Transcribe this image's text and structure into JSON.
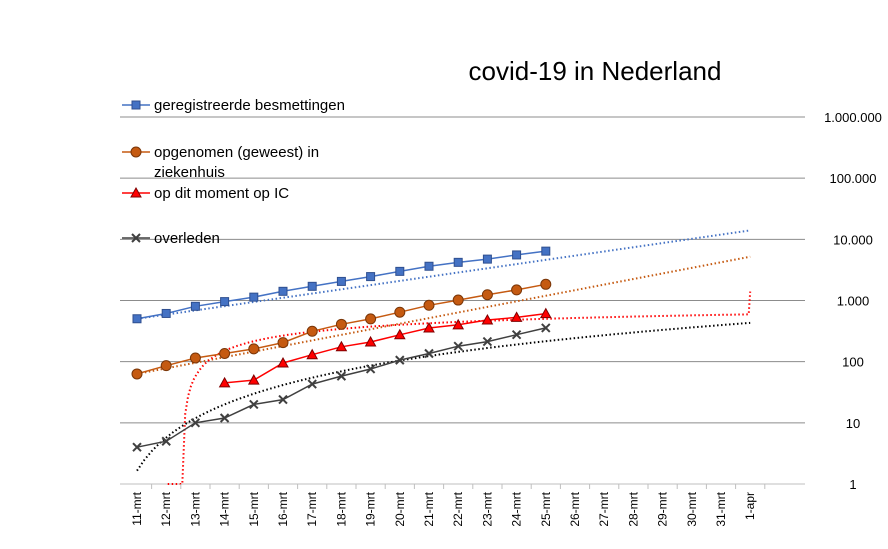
{
  "chart_data": {
    "type": "line",
    "title": "covid-19 in Nederland",
    "xlabel": "",
    "ylabel": "",
    "yscale": "log",
    "ylim": [
      1,
      1000000
    ],
    "grid": true,
    "legend_position": "top-left",
    "y_tick_labels": [
      "1",
      "10",
      "100",
      "1.000",
      "10.000",
      "100.000",
      "1.000.000"
    ],
    "categories": [
      "11-mrt",
      "12-mrt",
      "13-mrt",
      "14-mrt",
      "15-mrt",
      "16-mrt",
      "17-mrt",
      "18-mrt",
      "19-mrt",
      "20-mrt",
      "21-mrt",
      "22-mrt",
      "23-mrt",
      "24-mrt",
      "25-mrt",
      "26-mrt",
      "27-mrt",
      "28-mrt",
      "29-mrt",
      "30-mrt",
      "31-mrt",
      "1-apr"
    ],
    "series": [
      {
        "name": "geregistreerde besmettingen",
        "color": "#4472C4",
        "marker": "square",
        "values": [
          503,
          614,
          804,
          959,
          1135,
          1413,
          1705,
          2051,
          2460,
          2994,
          3631,
          4204,
          4749,
          5560,
          6412,
          null,
          null,
          null,
          null,
          null,
          null,
          null
        ],
        "trendline_end": 14000
      },
      {
        "name": "opgenomen (geweest) in ziekenhuis",
        "color": "#C55A11",
        "marker": "circle",
        "values": [
          63,
          86,
          115,
          136,
          162,
          205,
          314,
          408,
          500,
          643,
          835,
          1017,
          1242,
          1490,
          1840,
          null,
          null,
          null,
          null,
          null,
          null,
          null
        ],
        "trendline_end": 5200
      },
      {
        "name": "op dit moment op IC",
        "color": "#FF0000",
        "marker": "triangle",
        "values": [
          null,
          null,
          null,
          45,
          50,
          95,
          130,
          175,
          210,
          275,
          355,
          400,
          480,
          530,
          610,
          null,
          null,
          null,
          null,
          null,
          null,
          null
        ],
        "trendline_end": 1400
      },
      {
        "name": "overleden",
        "color": "#000000",
        "marker": "x",
        "values": [
          4,
          5,
          10,
          12,
          20,
          24,
          43,
          58,
          76,
          106,
          136,
          179,
          213,
          276,
          356,
          null,
          null,
          null,
          null,
          null,
          null,
          null
        ],
        "trendline_end": 1400
      }
    ]
  }
}
